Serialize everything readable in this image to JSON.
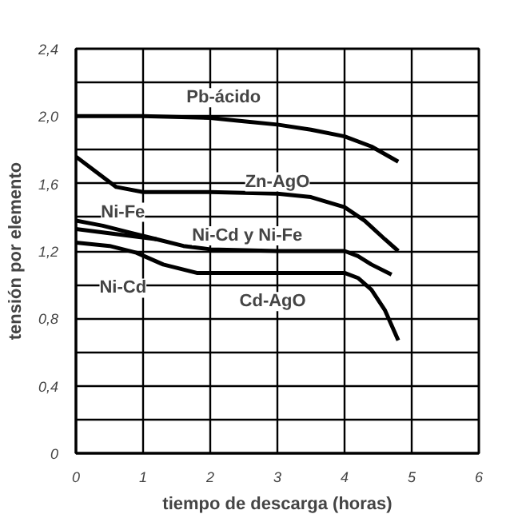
{
  "chart_data": {
    "type": "line",
    "xlabel": "tiempo de descarga (horas)",
    "ylabel": "tensión por elemento",
    "xlim": [
      0,
      6
    ],
    "ylim": [
      0,
      2.4
    ],
    "xticks": [
      0,
      1,
      2,
      3,
      4,
      5,
      6
    ],
    "yticks": [
      0,
      {
        "value": 0.2,
        "label": null
      },
      {
        "value": 0.4,
        "label": "0,4"
      },
      {
        "value": 0.6,
        "label": null
      },
      {
        "value": 0.8,
        "label": "0,8"
      },
      {
        "value": 1.0,
        "label": null
      },
      {
        "value": 1.2,
        "label": "1,2"
      },
      {
        "value": 1.4,
        "label": null
      },
      {
        "value": 1.6,
        "label": "1,6"
      },
      {
        "value": 1.8,
        "label": null
      },
      {
        "value": 2.0,
        "label": "2,0"
      },
      {
        "value": 2.2,
        "label": null
      },
      {
        "value": 2.4,
        "label": "2,4"
      }
    ],
    "grid": true,
    "marker": "none",
    "line_style": "solid",
    "series": [
      {
        "color": "#000000",
        "x": [
          0,
          1,
          2,
          2.5,
          3,
          3.5,
          4,
          4.4,
          4.8
        ],
        "values": [
          2.0,
          2.0,
          1.99,
          1.97,
          1.95,
          1.92,
          1.88,
          1.82,
          1.73
        ]
      },
      {
        "color": "#000000",
        "x": [
          0,
          0.3,
          0.6,
          1,
          1.5,
          2,
          3,
          3.5,
          4,
          4.3,
          4.6,
          4.8
        ],
        "values": [
          1.76,
          1.67,
          1.58,
          1.55,
          1.55,
          1.55,
          1.54,
          1.52,
          1.46,
          1.38,
          1.27,
          1.2
        ]
      },
      {
        "color": "#000000",
        "x": [
          0,
          0.4,
          0.8,
          1.2,
          1.6,
          2,
          3,
          4,
          4.2,
          4.4,
          4.7
        ],
        "values": [
          1.38,
          1.35,
          1.31,
          1.27,
          1.23,
          1.21,
          1.2,
          1.2,
          1.17,
          1.12,
          1.06
        ]
      },
      {
        "color": "#000000",
        "x": [
          0,
          0.4,
          0.8,
          1.2
        ],
        "values": [
          1.33,
          1.31,
          1.29,
          1.27
        ]
      },
      {
        "color": "#000000",
        "x": [
          0,
          0.5,
          0.9,
          1.3,
          1.8,
          3,
          4,
          4.2,
          4.4,
          4.6,
          4.8
        ],
        "values": [
          1.25,
          1.23,
          1.19,
          1.12,
          1.07,
          1.07,
          1.07,
          1.04,
          0.97,
          0.85,
          0.67
        ]
      }
    ],
    "annotations": [
      "Pb-ácido",
      "Zn-AgO",
      "Ni-Fe",
      "Ni-Cd y Ni-Fe",
      "Ni-Cd",
      "Cd-AgO"
    ]
  }
}
